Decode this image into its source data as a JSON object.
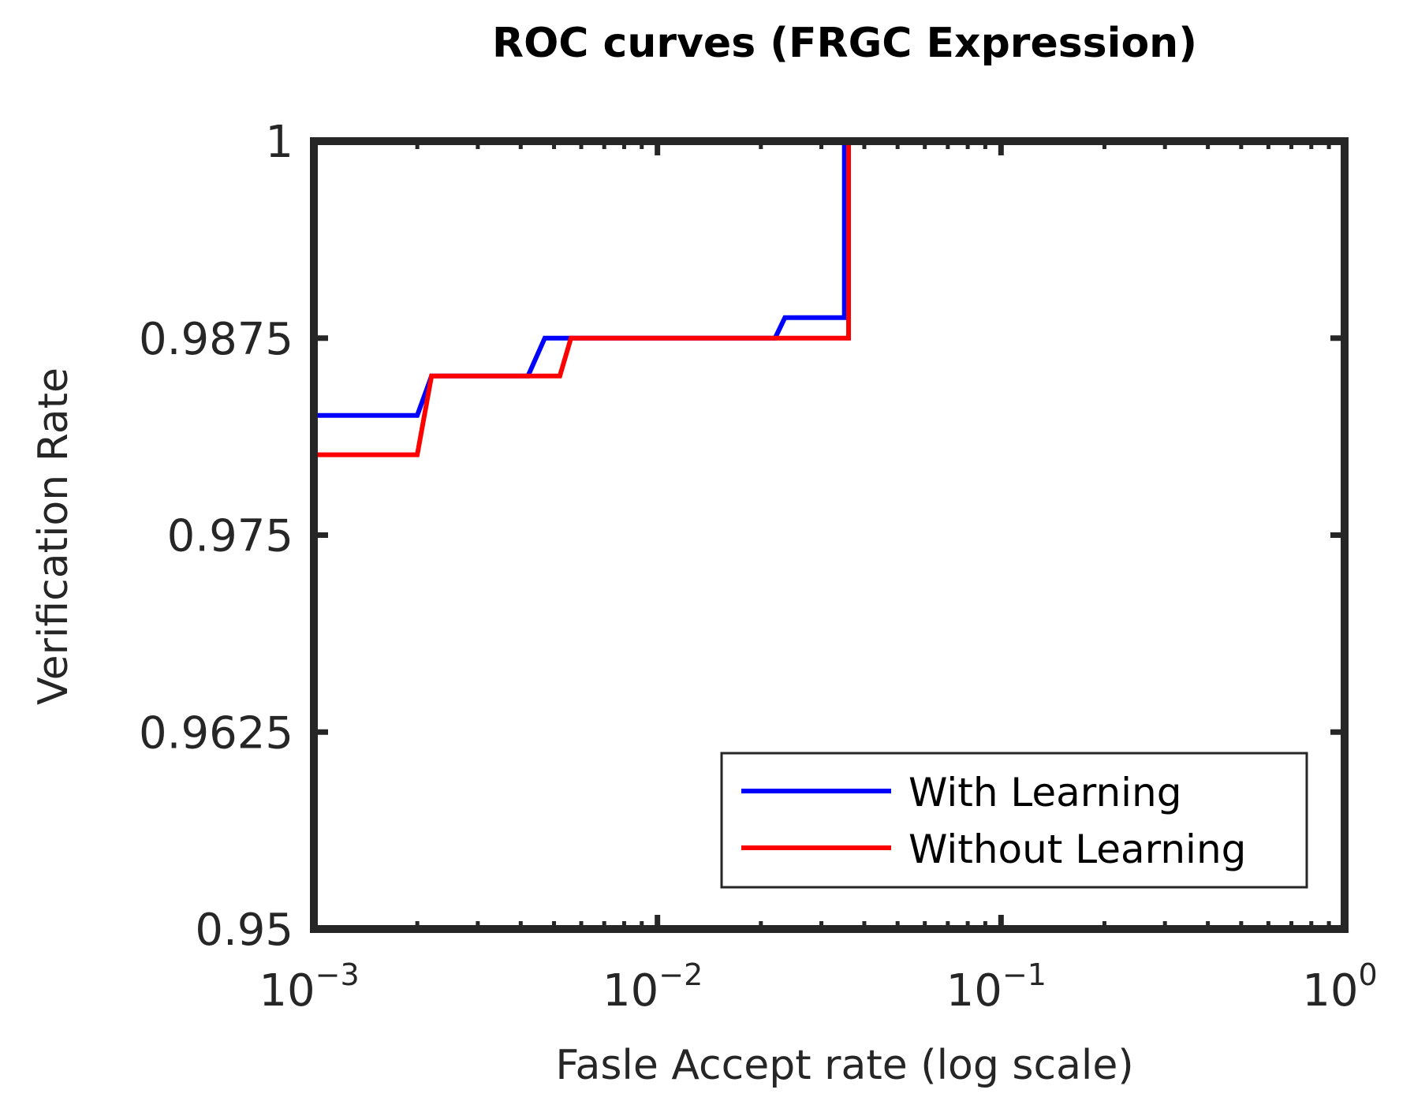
{
  "chart_data": {
    "type": "line",
    "title": "ROC curves (FRGC Expression)",
    "xlabel": "Fasle Accept rate (log scale)",
    "ylabel": "Verification Rate",
    "xscale": "log",
    "xlim": [
      0.001,
      1
    ],
    "ylim": [
      0.95,
      1
    ],
    "x_ticks": [
      0.001,
      0.01,
      0.1,
      1
    ],
    "x_tick_labels": [
      {
        "base": "10",
        "exp": "−3"
      },
      {
        "base": "10",
        "exp": "−2"
      },
      {
        "base": "10",
        "exp": "−1"
      },
      {
        "base": "10",
        "exp": "0"
      }
    ],
    "y_ticks": [
      0.95,
      0.9625,
      0.975,
      0.9875,
      1
    ],
    "y_tick_labels": [
      "0.95",
      "0.9625",
      "0.975",
      "0.9875",
      "1"
    ],
    "grid": false,
    "legend": "bottom-right",
    "series": [
      {
        "name": "With Learning",
        "color": "#0000ff",
        "x": [
          0.001,
          0.002,
          0.0022,
          0.0042,
          0.0047,
          0.022,
          0.0235,
          0.035,
          0.035,
          1
        ],
        "y": [
          0.9826,
          0.9826,
          0.9851,
          0.9851,
          0.9875,
          0.9875,
          0.9888,
          0.9888,
          1.0,
          1.0
        ]
      },
      {
        "name": "Without Learning",
        "color": "#ff0000",
        "x": [
          0.001,
          0.002,
          0.0022,
          0.0052,
          0.0056,
          0.036,
          0.036,
          1
        ],
        "y": [
          0.9801,
          0.9801,
          0.9851,
          0.9851,
          0.9875,
          0.9875,
          1.0,
          1.0
        ]
      }
    ]
  }
}
